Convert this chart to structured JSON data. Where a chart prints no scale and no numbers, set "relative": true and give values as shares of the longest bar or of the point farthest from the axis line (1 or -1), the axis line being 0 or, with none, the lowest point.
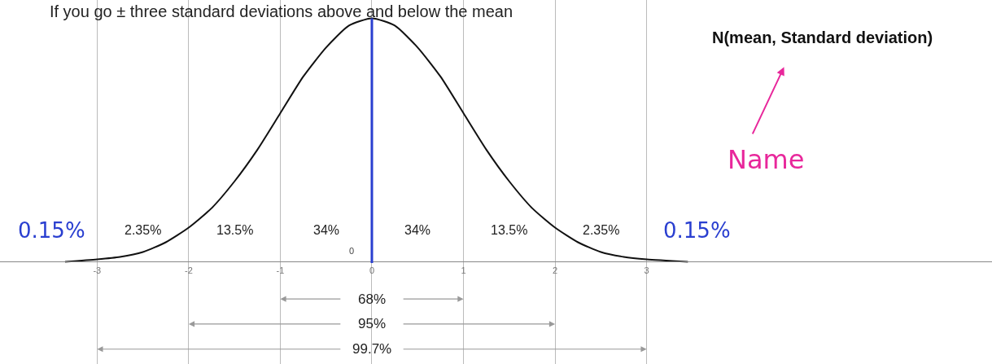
{
  "chart_data": {
    "type": "line",
    "relative": true,
    "title": "If you go ± three standard deviations above and below the mean",
    "x": [
      -3.35,
      -3,
      -2.75,
      -2.5,
      -2.25,
      -2,
      -1.75,
      -1.5,
      -1.25,
      -1,
      -0.75,
      -0.5,
      -0.25,
      0,
      0.25,
      0.5,
      0.75,
      1,
      1.25,
      1.5,
      1.75,
      2,
      2.25,
      2.5,
      2.75,
      3,
      3.45
    ],
    "series": [
      {
        "color": "#111111",
        "values": [
          0.0,
          0.01,
          0.02,
          0.04,
          0.08,
          0.14,
          0.22,
          0.33,
          0.46,
          0.61,
          0.76,
          0.88,
          0.97,
          1.0,
          0.97,
          0.88,
          0.76,
          0.61,
          0.46,
          0.33,
          0.22,
          0.14,
          0.08,
          0.04,
          0.02,
          0.01,
          0.0
        ]
      }
    ],
    "xlim": [
      -4.06,
      6.77
    ],
    "xticks": [
      -3,
      -2,
      -1,
      0,
      1,
      2,
      3
    ],
    "grid": "x",
    "marker": "none",
    "line_style": "solid",
    "ref_lines": [
      {
        "axis": "x",
        "value": 0,
        "color": "#2a3fd0"
      }
    ],
    "annotations": [
      "2.35%",
      "13.5%",
      "34%",
      "34%",
      "13.5%",
      "2.35%",
      "0.15%",
      "0.15%",
      "N(mean, Standard deviation)",
      "Name",
      "0",
      "68%",
      "95%",
      "99.7%"
    ]
  }
}
